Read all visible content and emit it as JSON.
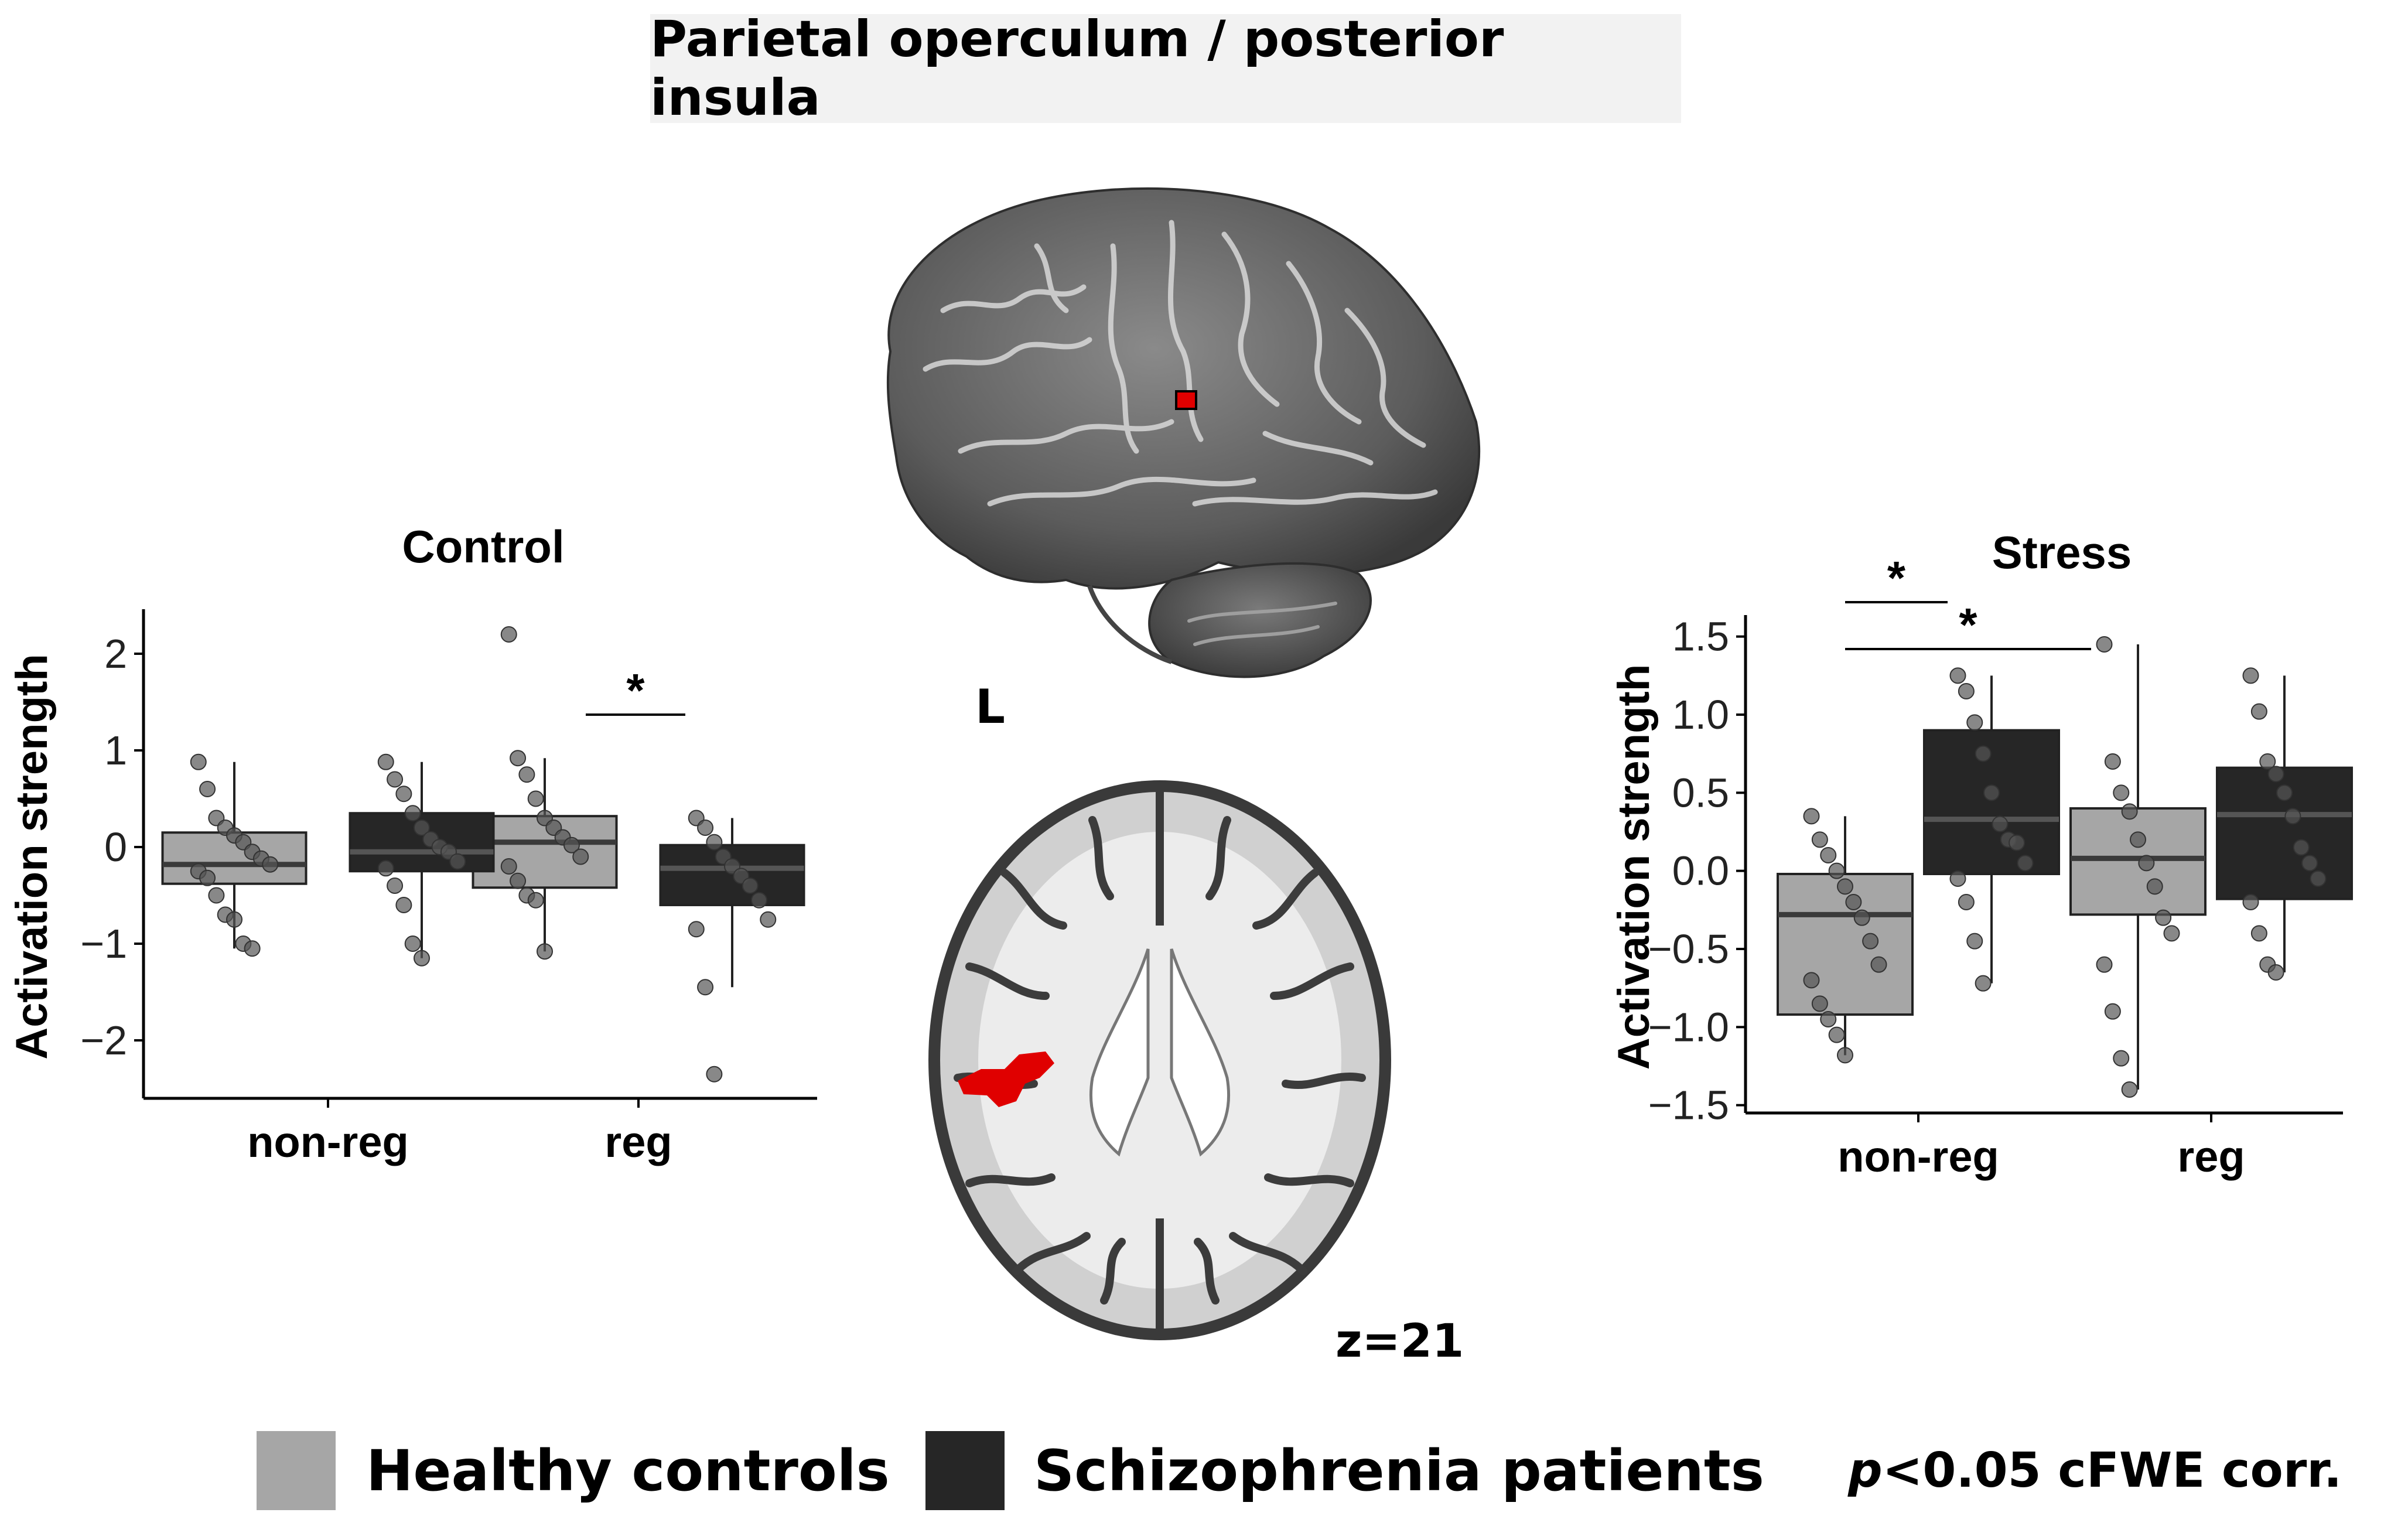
{
  "figure": {
    "title": "Parietal operculum / posterior insula",
    "lateral_view_label": "L",
    "axial_slice_label": "z=21",
    "legend": {
      "healthy_label": "Healthy controls",
      "patients_label": "Schizophrenia patients",
      "p_symbol": "p",
      "p_rest": "<0.05 cFWE corr."
    }
  },
  "colors": {
    "healthy": "#a6a6a6",
    "patients": "#262626",
    "activation": "#e00000",
    "title_background": "#f2f2f2"
  },
  "chart_data": [
    {
      "type": "box",
      "title": "Control",
      "ylabel": "Activation strength",
      "xlabel": "",
      "ylim": [
        -2.6,
        2.4
      ],
      "yticks": [
        2,
        1,
        0,
        -1,
        -2
      ],
      "ytick_labels": [
        "2",
        "1",
        "0",
        "−1",
        "−2"
      ],
      "categories": [
        "non-reg",
        "reg"
      ],
      "series": [
        {
          "name": "Healthy controls",
          "boxes": [
            {
              "category": "non-reg",
              "q1": -0.38,
              "median": -0.18,
              "q3": 0.15,
              "whisker_low": -1.05,
              "whisker_high": 0.88,
              "points": [
                0.88,
                0.6,
                0.3,
                0.2,
                0.12,
                0.05,
                -0.05,
                -0.12,
                -0.18,
                -0.25,
                -0.32,
                -0.5,
                -0.7,
                -0.75,
                -1.0,
                -1.05
              ]
            },
            {
              "category": "reg",
              "q1": -0.42,
              "median": 0.05,
              "q3": 0.32,
              "whisker_low": -1.08,
              "whisker_high": 0.92,
              "points": [
                2.2,
                0.92,
                0.75,
                0.5,
                0.3,
                0.2,
                0.1,
                0.02,
                -0.1,
                -0.2,
                -0.35,
                -0.5,
                -0.55,
                -1.08
              ]
            }
          ]
        },
        {
          "name": "Schizophrenia patients",
          "boxes": [
            {
              "category": "non-reg",
              "q1": -0.25,
              "median": -0.05,
              "q3": 0.35,
              "whisker_low": -1.15,
              "whisker_high": 0.88,
              "points": [
                0.88,
                0.7,
                0.55,
                0.35,
                0.2,
                0.08,
                0.0,
                -0.05,
                -0.15,
                -0.22,
                -0.4,
                -0.6,
                -1.0,
                -1.15
              ]
            },
            {
              "category": "reg",
              "q1": -0.6,
              "median": -0.22,
              "q3": 0.02,
              "whisker_low": -1.45,
              "whisker_high": 0.3,
              "points": [
                0.3,
                0.2,
                0.05,
                -0.1,
                -0.2,
                -0.3,
                -0.4,
                -0.55,
                -0.75,
                -0.85,
                -1.45,
                -2.35
              ]
            }
          ]
        }
      ],
      "significance": [
        {
          "label": "*",
          "from": "reg Healthy controls",
          "to": "reg Schizophrenia patients"
        }
      ]
    },
    {
      "type": "box",
      "title": "Stress",
      "ylabel": "Activation strength",
      "xlabel": "",
      "ylim": [
        -1.55,
        1.6
      ],
      "yticks": [
        1.5,
        1.0,
        0.5,
        0.0,
        -0.5,
        -1.0,
        -1.5
      ],
      "ytick_labels": [
        "1.5",
        "1.0",
        "0.5",
        "0.0",
        "−0.5",
        "−1.0",
        "−1.5"
      ],
      "categories": [
        "non-reg",
        "reg"
      ],
      "series": [
        {
          "name": "Healthy controls",
          "boxes": [
            {
              "category": "non-reg",
              "q1": -0.92,
              "median": -0.28,
              "q3": -0.02,
              "whisker_low": -1.18,
              "whisker_high": 0.35,
              "points": [
                0.35,
                0.2,
                0.1,
                0.0,
                -0.1,
                -0.2,
                -0.3,
                -0.45,
                -0.6,
                -0.7,
                -0.85,
                -0.95,
                -1.05,
                -1.18
              ]
            },
            {
              "category": "reg",
              "q1": -0.28,
              "median": 0.08,
              "q3": 0.4,
              "whisker_low": -1.4,
              "whisker_high": 1.45,
              "points": [
                1.45,
                0.7,
                0.5,
                0.38,
                0.2,
                0.05,
                -0.1,
                -0.3,
                -0.4,
                -0.6,
                -0.9,
                -1.2,
                -1.4
              ]
            }
          ]
        },
        {
          "name": "Schizophrenia patients",
          "boxes": [
            {
              "category": "non-reg",
              "q1": -0.02,
              "median": 0.33,
              "q3": 0.9,
              "whisker_low": -0.72,
              "whisker_high": 1.25,
              "points": [
                1.25,
                1.15,
                0.95,
                0.75,
                0.5,
                0.3,
                0.2,
                0.18,
                0.05,
                -0.05,
                -0.2,
                -0.45,
                -0.72
              ]
            },
            {
              "category": "reg",
              "q1": -0.18,
              "median": 0.36,
              "q3": 0.66,
              "whisker_low": -0.65,
              "whisker_high": 1.25,
              "points": [
                1.25,
                1.02,
                0.7,
                0.62,
                0.5,
                0.35,
                0.15,
                0.05,
                -0.05,
                -0.2,
                -0.4,
                -0.6,
                -0.65
              ]
            }
          ]
        }
      ],
      "significance": [
        {
          "label": "*",
          "from": "non-reg Healthy controls",
          "to": "non-reg Schizophrenia patients"
        },
        {
          "label": "*",
          "from": "non-reg Healthy controls",
          "to": "reg Healthy controls"
        }
      ]
    }
  ]
}
